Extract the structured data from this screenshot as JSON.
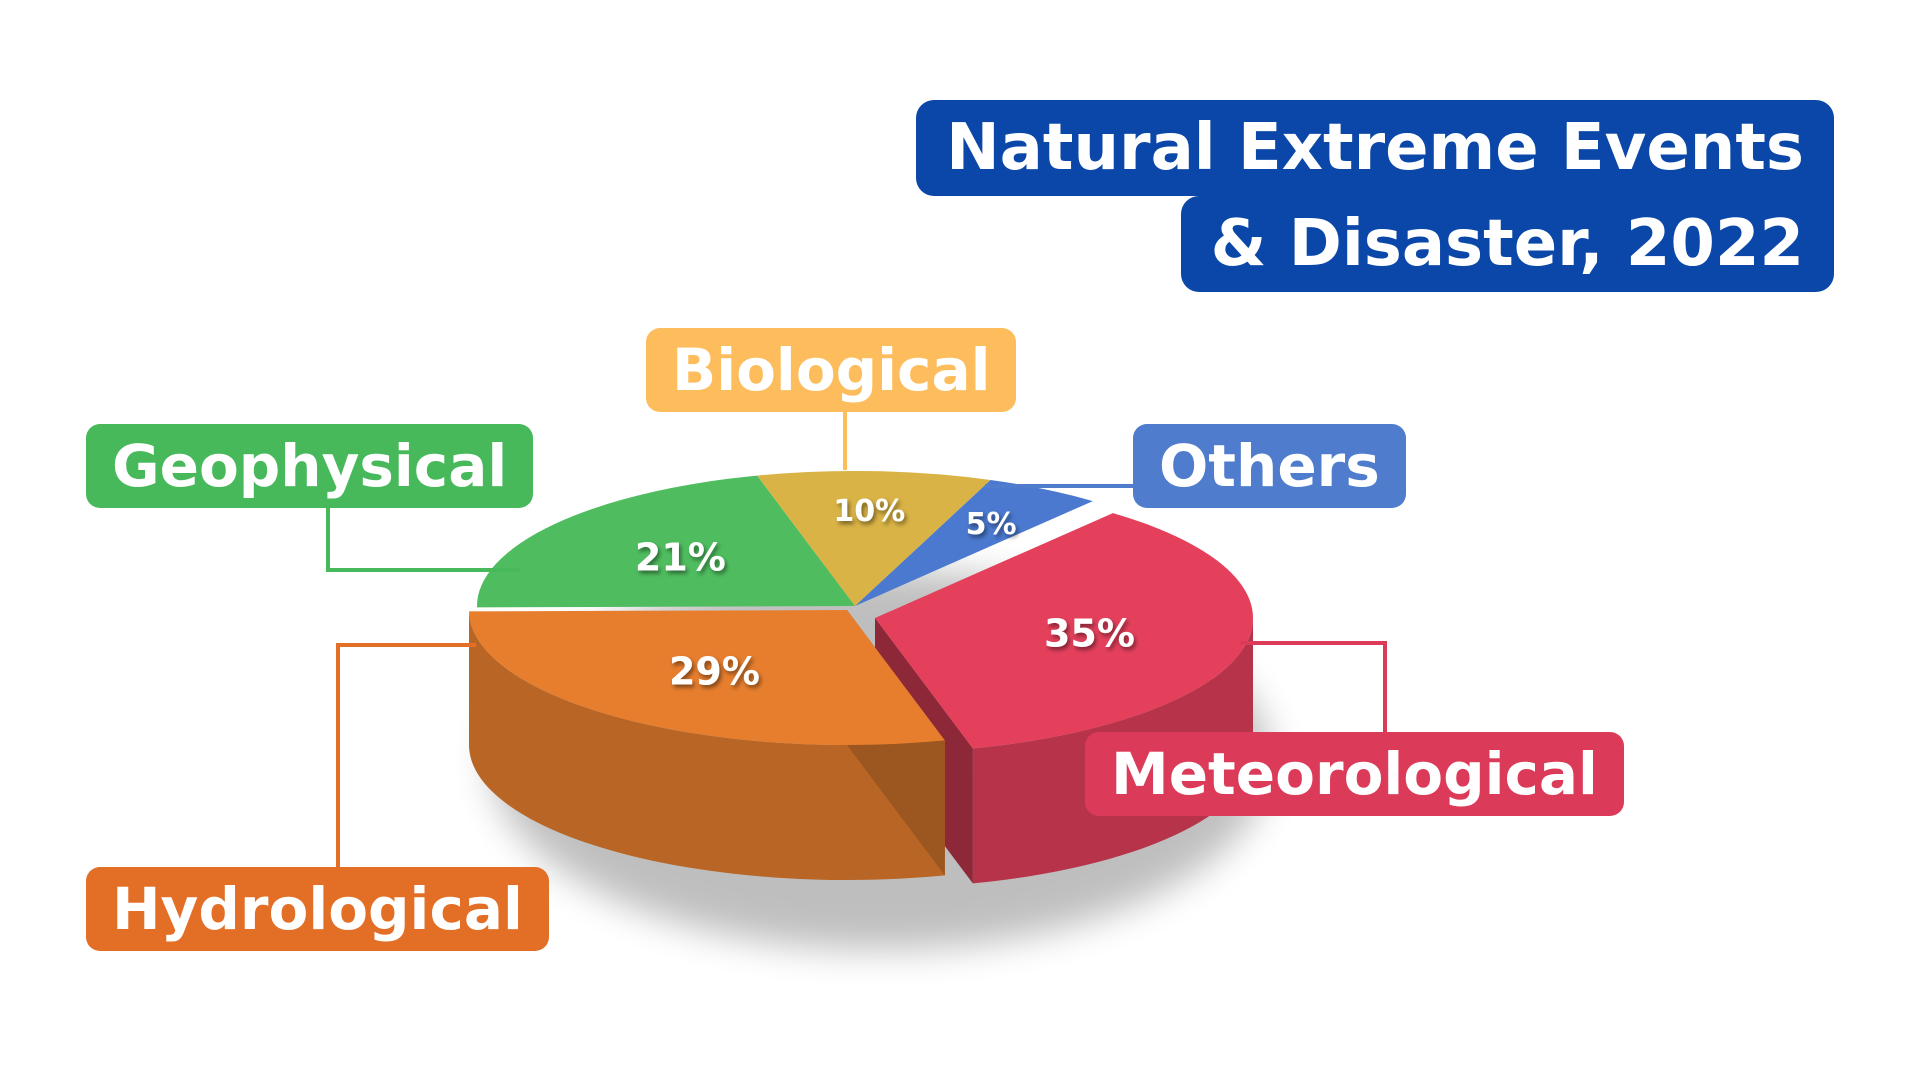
{
  "title": {
    "line1": "Natural Extreme Events",
    "line2": "& Disaster, 2022"
  },
  "chart_data": {
    "type": "pie",
    "title": "Natural Extreme Events & Disaster, 2022",
    "unit": "%",
    "slices": [
      {
        "name": "Others",
        "value": 5,
        "label": "5%",
        "color": "#4a79cf"
      },
      {
        "name": "Meteorological",
        "value": 35,
        "label": "35%",
        "color": "#e4405c"
      },
      {
        "name": "Hydrological",
        "value": 29,
        "label": "29%",
        "color": "#e67e2e"
      },
      {
        "name": "Geophysical",
        "value": 21,
        "label": "21%",
        "color": "#4fbd5f"
      },
      {
        "name": "Biological",
        "value": 10,
        "label": "10%",
        "color": "#d9b345"
      }
    ],
    "legend_placement": "callouts"
  },
  "colors": {
    "title_bg": "#0a47a8",
    "biological_label": "#fdbd5d",
    "geophysical_label": "#47b95b",
    "others_label": "#4f7ccd",
    "meteorological_label": "#dc3a59",
    "hydrological_label": "#e36e26"
  }
}
